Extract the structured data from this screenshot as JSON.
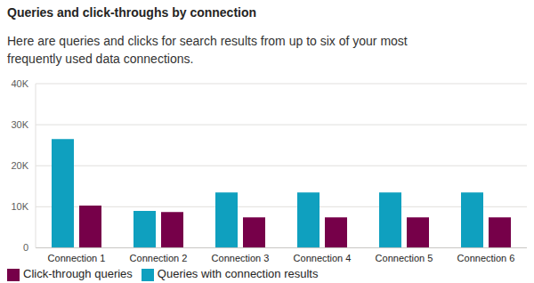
{
  "chart_data": {
    "type": "bar",
    "title": "Queries and click-throughs by connection",
    "subtitle": "Here are queries and clicks for search results from up to six of your most frequently used data connections.",
    "categories": [
      "Connection 1",
      "Connection 2",
      "Connection 3",
      "Connection 4",
      "Connection 5",
      "Connection 6"
    ],
    "series": [
      {
        "name": "Queries with connection results",
        "color": "#0fa0bf",
        "values": [
          26500,
          9000,
          13500,
          13500,
          13500,
          13500
        ]
      },
      {
        "name": "Click-through queries",
        "color": "#760049",
        "values": [
          10300,
          8700,
          7400,
          7400,
          7400,
          7400
        ]
      }
    ],
    "ylim": [
      0,
      40000
    ],
    "yticks": [
      0,
      {
        "value": 10000,
        "label": "10K"
      },
      {
        "value": 20000,
        "label": "20K"
      },
      {
        "value": 30000,
        "label": "30K"
      },
      {
        "value": 40000,
        "label": "40K"
      }
    ],
    "grid": true,
    "legend": "bottom"
  }
}
